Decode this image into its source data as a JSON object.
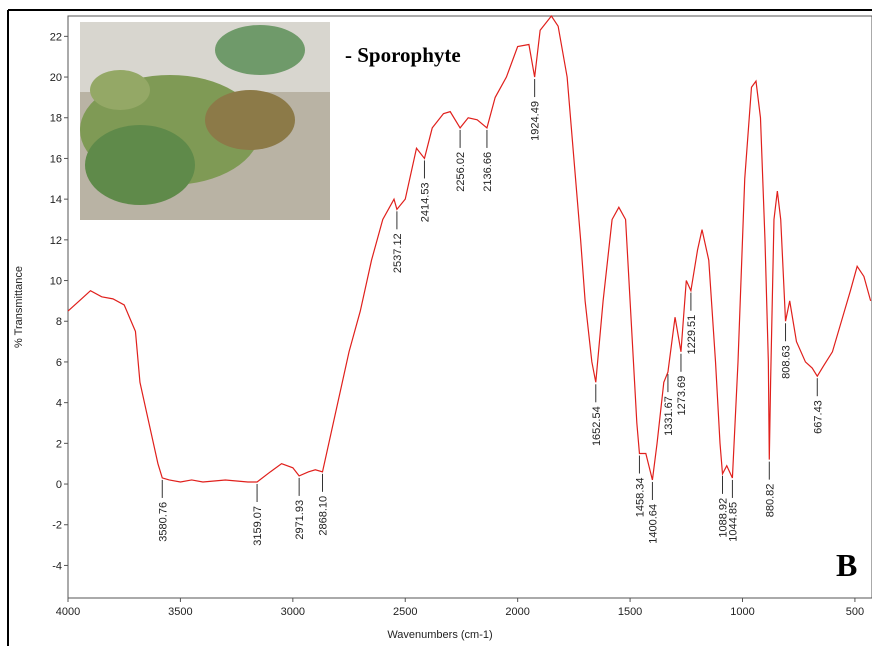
{
  "chart_data": {
    "type": "line",
    "xlabel": "Wavenumbers (cm-1)",
    "ylabel": "% Transmittance",
    "annotations": {
      "sample": "- Sporophyte",
      "panel": "B"
    },
    "color": "#e0201c",
    "xlim": [
      4000,
      424
    ],
    "ylim": [
      -5.6,
      23
    ],
    "xticks": [
      4000,
      3500,
      3000,
      2500,
      2000,
      1500,
      1000,
      500
    ],
    "yticks": [
      -4,
      -2,
      0,
      2,
      4,
      6,
      8,
      10,
      12,
      14,
      16,
      18,
      20,
      22
    ],
    "x": [
      4000,
      3950,
      3900,
      3850,
      3800,
      3750,
      3700,
      3680,
      3650,
      3620,
      3600,
      3580.76,
      3550,
      3500,
      3450,
      3400,
      3300,
      3200,
      3159.07,
      3100,
      3050,
      3000,
      2971.93,
      2930,
      2900,
      2868.1,
      2850,
      2800,
      2750,
      2700,
      2650,
      2600,
      2550,
      2537.12,
      2500,
      2450,
      2414.53,
      2380,
      2330,
      2300,
      2256.02,
      2220,
      2180,
      2136.66,
      2100,
      2050,
      2000,
      1950,
      1924.49,
      1900,
      1850,
      1820,
      1780,
      1750,
      1720,
      1700,
      1670,
      1652.54,
      1620,
      1580,
      1550,
      1520,
      1500,
      1470,
      1458.34,
      1430,
      1400.64,
      1380,
      1350,
      1331.67,
      1300,
      1273.69,
      1250,
      1229.51,
      1200,
      1180,
      1150,
      1120,
      1100,
      1088.92,
      1070,
      1044.85,
      1020,
      990,
      960,
      940,
      920,
      900,
      885,
      880.82,
      875,
      860,
      845,
      830,
      808.63,
      790,
      760,
      720,
      690,
      667.43,
      640,
      600,
      560,
      520,
      490,
      460,
      430
    ],
    "values": [
      8.5,
      9.0,
      9.5,
      9.2,
      9.1,
      8.8,
      7.5,
      5,
      3.5,
      2,
      1,
      0.3,
      0.2,
      0.1,
      0.2,
      0.1,
      0.2,
      0.1,
      0.1,
      0.6,
      1.0,
      0.8,
      0.4,
      0.6,
      0.7,
      0.6,
      1.5,
      4,
      6.5,
      8.5,
      11,
      13,
      14,
      13.5,
      14,
      16.5,
      16,
      17.5,
      18.2,
      18.3,
      17.5,
      18,
      17.9,
      17.5,
      19,
      20,
      21.5,
      21.6,
      20,
      22.3,
      23,
      22.5,
      20,
      16,
      12,
      9,
      6,
      5,
      9,
      13,
      13.6,
      13,
      9,
      3,
      1.5,
      1.5,
      0.2,
      2,
      5,
      5.5,
      8.2,
      6.5,
      10,
      9.5,
      11.5,
      12.5,
      11,
      6,
      2,
      0.5,
      0.9,
      0.3,
      6,
      15,
      19.5,
      19.8,
      18,
      12,
      6,
      1.2,
      5,
      13,
      14.4,
      13,
      8,
      9,
      7,
      6,
      5.7,
      5.3,
      5.8,
      6.5,
      8,
      9.5,
      10.7,
      10.2,
      9
    ],
    "peaks": [
      {
        "value": 3580.76,
        "label": "3580.76",
        "y": 0.3
      },
      {
        "value": 3159.07,
        "label": "3159.07",
        "y": 0.1
      },
      {
        "value": 2971.93,
        "label": "2971.93",
        "y": 0.4
      },
      {
        "value": 2868.1,
        "label": "2868.10",
        "y": 0.6
      },
      {
        "value": 2537.12,
        "label": "2537.12",
        "y": 13.5
      },
      {
        "value": 2414.53,
        "label": "2414.53",
        "y": 16
      },
      {
        "value": 2256.02,
        "label": "2256.02",
        "y": 17.5
      },
      {
        "value": 2136.66,
        "label": "2136.66",
        "y": 17.5
      },
      {
        "value": 1924.49,
        "label": "1924.49",
        "y": 20
      },
      {
        "value": 1652.54,
        "label": "1652.54",
        "y": 5
      },
      {
        "value": 1458.34,
        "label": "1458.34",
        "y": 1.5
      },
      {
        "value": 1400.64,
        "label": "1400.64",
        "y": 0.2
      },
      {
        "value": 1331.67,
        "label": "1331.67",
        "y": 5.5
      },
      {
        "value": 1273.69,
        "label": "1273.69",
        "y": 6.5
      },
      {
        "value": 1229.51,
        "label": "1229.51",
        "y": 9.5
      },
      {
        "value": 1088.92,
        "label": "1088.92",
        "y": 0.5
      },
      {
        "value": 1044.85,
        "label": "1044.85",
        "y": 0.3
      },
      {
        "value": 880.82,
        "label": "880.82",
        "y": 1.2
      },
      {
        "value": 808.63,
        "label": "808.63",
        "y": 8
      },
      {
        "value": 667.43,
        "label": "667.43",
        "y": 5.3
      }
    ]
  }
}
